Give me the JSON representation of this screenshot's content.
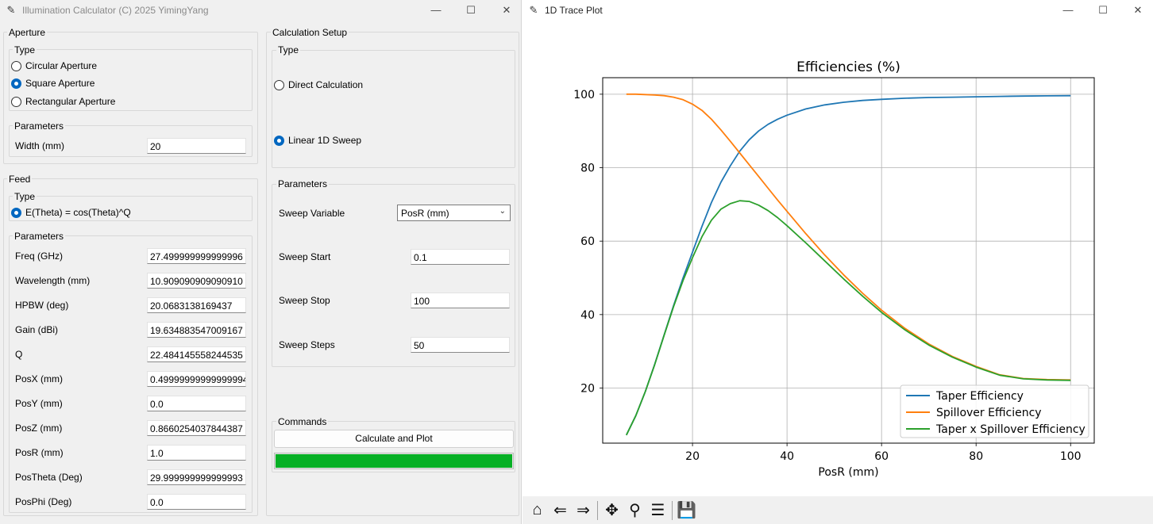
{
  "left_window": {
    "title": "Illumination Calculator (C) 2025  YimingYang",
    "aperture": {
      "section_label": "Aperture",
      "type_label": "Type",
      "options": [
        "Circular Aperture",
        "Square Aperture",
        "Rectangular Aperture"
      ],
      "selected": "Square Aperture",
      "params_label": "Parameters",
      "width_label": "Width (mm)",
      "width_value": "20"
    },
    "feed": {
      "section_label": "Feed",
      "type_label": "Type",
      "option": "E(Theta) = cos(Theta)^Q",
      "params_label": "Parameters",
      "params": [
        {
          "label": "Freq (GHz)",
          "value": "27.499999999999996"
        },
        {
          "label": "Wavelength (mm)",
          "value": "10.909090909090910"
        },
        {
          "label": "HPBW (deg)",
          "value": "20.0683138169437"
        },
        {
          "label": "Gain (dBi)",
          "value": "19.634883547009167"
        },
        {
          "label": "Q",
          "value": "22.484145558244535"
        },
        {
          "label": "PosX (mm)",
          "value": "0.49999999999999994"
        },
        {
          "label": "PosY (mm)",
          "value": "0.0"
        },
        {
          "label": "PosZ (mm)",
          "value": "0.8660254037844387"
        },
        {
          "label": "PosR (mm)",
          "value": "1.0"
        },
        {
          "label": "PosTheta (Deg)",
          "value": "29.999999999999993"
        },
        {
          "label": "PosPhi (Deg)",
          "value": "0.0"
        }
      ]
    },
    "calc": {
      "section_label": "Calculation Setup",
      "type_label": "Type",
      "options": [
        "Direct Calculation",
        "Linear 1D Sweep"
      ],
      "selected": "Linear 1D Sweep",
      "params_label": "Parameters",
      "sweep_variable_label": "Sweep Variable",
      "sweep_variable_value": "PosR (mm)",
      "sweep_start_label": "Sweep Start",
      "sweep_start_value": "0.1",
      "sweep_stop_label": "Sweep Stop",
      "sweep_stop_value": "100",
      "sweep_steps_label": "Sweep Steps",
      "sweep_steps_value": "50"
    },
    "commands": {
      "section_label": "Commands",
      "button_label": "Calculate and Plot",
      "progress": 1.0,
      "progress_color": "#06b025"
    }
  },
  "right_window": {
    "title": "1D Trace Plot",
    "toolbar_icons": [
      "home-icon",
      "back-icon",
      "forward-icon",
      "pan-icon",
      "zoom-icon",
      "configure-icon",
      "save-icon"
    ]
  },
  "chart_data": {
    "type": "line",
    "title": "Efficiencies (%)",
    "xlabel": "PosR (mm)",
    "ylabel": "",
    "xlim": [
      1,
      105
    ],
    "ylim": [
      5,
      104.5
    ],
    "xticks": [
      20,
      40,
      60,
      80,
      100
    ],
    "yticks": [
      20,
      40,
      60,
      80,
      100
    ],
    "grid": true,
    "legend_position": "lower right",
    "x": [
      6,
      8,
      10,
      12,
      14,
      16,
      18,
      20,
      22,
      24,
      26,
      28,
      30,
      32,
      34,
      36,
      38,
      40,
      44,
      48,
      52,
      56,
      60,
      65,
      70,
      75,
      80,
      85,
      90,
      95,
      100
    ],
    "series": [
      {
        "name": "Taper Efficiency",
        "color": "#1f77b4",
        "values": [
          7.2,
          12.5,
          19,
          26.5,
          34.5,
          42.5,
          50,
          57,
          64,
          70.5,
          76,
          80.5,
          84.5,
          87.6,
          90,
          91.8,
          93.2,
          94.3,
          96,
          97.1,
          97.8,
          98.3,
          98.6,
          98.9,
          99.1,
          99.2,
          99.3,
          99.4,
          99.5,
          99.55,
          99.6
        ]
      },
      {
        "name": "Spillover Efficiency",
        "color": "#ff7f0e",
        "values": [
          100,
          100,
          99.9,
          99.8,
          99.6,
          99.2,
          98.5,
          97.3,
          95.6,
          93.2,
          90.3,
          87.2,
          84,
          80.8,
          77.6,
          74.4,
          71.2,
          68.1,
          62,
          56.2,
          50.8,
          45.8,
          41.2,
          36.2,
          32,
          28.6,
          25.9,
          23.6,
          22.6,
          22.3,
          22.2
        ]
      },
      {
        "name": "Taper x Spillover Efficiency",
        "color": "#2ca02c",
        "values": [
          7.2,
          12.5,
          19,
          26.4,
          34.4,
          42.2,
          49.3,
          55.5,
          61.2,
          65.7,
          68.7,
          70.2,
          71,
          70.8,
          69.8,
          68.3,
          66.4,
          64.2,
          59.5,
          54.6,
          49.7,
          45,
          40.6,
          35.8,
          31.7,
          28.4,
          25.7,
          23.5,
          22.5,
          22.2,
          22.1
        ]
      }
    ]
  }
}
